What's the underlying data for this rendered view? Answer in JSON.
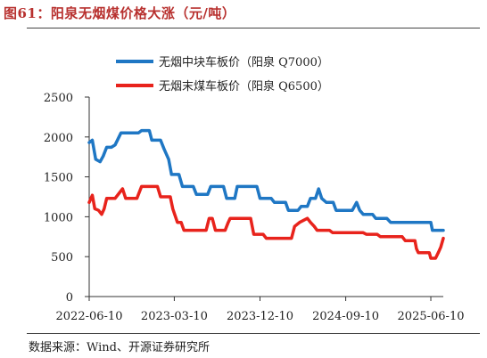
{
  "figure_title": "图61：阳泉无烟煤价格大涨（元/吨）",
  "source": "数据来源：Wind、开源证券研究所",
  "colors": {
    "title": "#b8312f",
    "series_1": "#1f77c4",
    "series_2": "#e8231c"
  },
  "chart_data": {
    "type": "line",
    "title": "",
    "xlabel": "",
    "ylabel": "",
    "x_ticks": [
      "2022-06-10",
      "2023-03-10",
      "2023-12-10",
      "2024-09-10",
      "2025-06-10"
    ],
    "x_range": [
      "2022-06-10",
      "2025-07-20"
    ],
    "y_ticks": [
      0,
      500,
      1000,
      1500,
      2000,
      2500
    ],
    "ylim": [
      0,
      2500
    ],
    "legend_position": "top-center",
    "grid": false,
    "series": [
      {
        "name": "无烟中块车板价（阳泉 Q7000）",
        "color": "#1f77c4",
        "points": [
          [
            "2022-06-10",
            1930
          ],
          [
            "2022-06-20",
            1960
          ],
          [
            "2022-07-01",
            1720
          ],
          [
            "2022-07-15",
            1690
          ],
          [
            "2022-07-25",
            1760
          ],
          [
            "2022-08-05",
            1870
          ],
          [
            "2022-08-20",
            1870
          ],
          [
            "2022-09-01",
            1900
          ],
          [
            "2022-09-20",
            2050
          ],
          [
            "2022-11-15",
            2050
          ],
          [
            "2022-11-25",
            2080
          ],
          [
            "2022-12-20",
            2080
          ],
          [
            "2022-12-28",
            1960
          ],
          [
            "2023-01-25",
            1960
          ],
          [
            "2023-02-05",
            1850
          ],
          [
            "2023-02-20",
            1720
          ],
          [
            "2023-03-01",
            1530
          ],
          [
            "2023-03-25",
            1530
          ],
          [
            "2023-04-05",
            1380
          ],
          [
            "2023-05-10",
            1380
          ],
          [
            "2023-05-20",
            1280
          ],
          [
            "2023-06-25",
            1280
          ],
          [
            "2023-07-05",
            1380
          ],
          [
            "2023-08-15",
            1380
          ],
          [
            "2023-08-25",
            1230
          ],
          [
            "2023-09-20",
            1230
          ],
          [
            "2023-09-28",
            1380
          ],
          [
            "2023-11-30",
            1380
          ],
          [
            "2023-12-10",
            1230
          ],
          [
            "2024-01-15",
            1230
          ],
          [
            "2024-01-25",
            1180
          ],
          [
            "2024-03-01",
            1180
          ],
          [
            "2024-03-10",
            1080
          ],
          [
            "2024-04-10",
            1080
          ],
          [
            "2024-04-20",
            1130
          ],
          [
            "2024-05-10",
            1130
          ],
          [
            "2024-05-20",
            1230
          ],
          [
            "2024-06-05",
            1230
          ],
          [
            "2024-06-15",
            1350
          ],
          [
            "2024-06-25",
            1230
          ],
          [
            "2024-07-10",
            1180
          ],
          [
            "2024-08-01",
            1180
          ],
          [
            "2024-08-10",
            1080
          ],
          [
            "2024-10-01",
            1080
          ],
          [
            "2024-10-15",
            1180
          ],
          [
            "2024-10-25",
            1080
          ],
          [
            "2024-11-05",
            1030
          ],
          [
            "2024-12-05",
            1030
          ],
          [
            "2024-12-15",
            980
          ],
          [
            "2025-01-20",
            980
          ],
          [
            "2025-02-01",
            930
          ],
          [
            "2025-06-10",
            930
          ],
          [
            "2025-06-15",
            830
          ],
          [
            "2025-07-20",
            830
          ]
        ]
      },
      {
        "name": "无烟末煤车板价（阳泉 Q6500）",
        "color": "#e8231c",
        "points": [
          [
            "2022-06-10",
            1180
          ],
          [
            "2022-06-20",
            1270
          ],
          [
            "2022-06-28",
            1100
          ],
          [
            "2022-07-10",
            1080
          ],
          [
            "2022-07-20",
            1030
          ],
          [
            "2022-07-28",
            1100
          ],
          [
            "2022-08-05",
            1230
          ],
          [
            "2022-09-01",
            1230
          ],
          [
            "2022-09-15",
            1300
          ],
          [
            "2022-09-25",
            1350
          ],
          [
            "2022-10-05",
            1230
          ],
          [
            "2022-11-10",
            1230
          ],
          [
            "2022-11-25",
            1380
          ],
          [
            "2023-01-15",
            1380
          ],
          [
            "2023-01-25",
            1250
          ],
          [
            "2023-02-25",
            1250
          ],
          [
            "2023-03-05",
            1100
          ],
          [
            "2023-03-20",
            930
          ],
          [
            "2023-04-01",
            930
          ],
          [
            "2023-04-10",
            830
          ],
          [
            "2023-06-20",
            830
          ],
          [
            "2023-06-30",
            980
          ],
          [
            "2023-07-10",
            980
          ],
          [
            "2023-07-20",
            830
          ],
          [
            "2023-08-20",
            830
          ],
          [
            "2023-08-30",
            930
          ],
          [
            "2023-09-05",
            980
          ],
          [
            "2023-11-10",
            980
          ],
          [
            "2023-11-20",
            780
          ],
          [
            "2023-12-20",
            780
          ],
          [
            "2023-12-30",
            730
          ],
          [
            "2024-03-20",
            730
          ],
          [
            "2024-03-30",
            880
          ],
          [
            "2024-04-15",
            930
          ],
          [
            "2024-05-10",
            980
          ],
          [
            "2024-05-20",
            930
          ],
          [
            "2024-06-01",
            880
          ],
          [
            "2024-06-10",
            830
          ],
          [
            "2024-07-20",
            830
          ],
          [
            "2024-07-30",
            800
          ],
          [
            "2024-11-05",
            800
          ],
          [
            "2024-11-15",
            780
          ],
          [
            "2024-12-20",
            780
          ],
          [
            "2024-12-30",
            750
          ],
          [
            "2025-03-10",
            750
          ],
          [
            "2025-03-20",
            700
          ],
          [
            "2025-04-20",
            700
          ],
          [
            "2025-04-25",
            600
          ],
          [
            "2025-05-01",
            550
          ],
          [
            "2025-06-05",
            550
          ],
          [
            "2025-06-10",
            480
          ],
          [
            "2025-06-25",
            480
          ],
          [
            "2025-07-05",
            560
          ],
          [
            "2025-07-12",
            620
          ],
          [
            "2025-07-20",
            730
          ]
        ]
      }
    ]
  }
}
